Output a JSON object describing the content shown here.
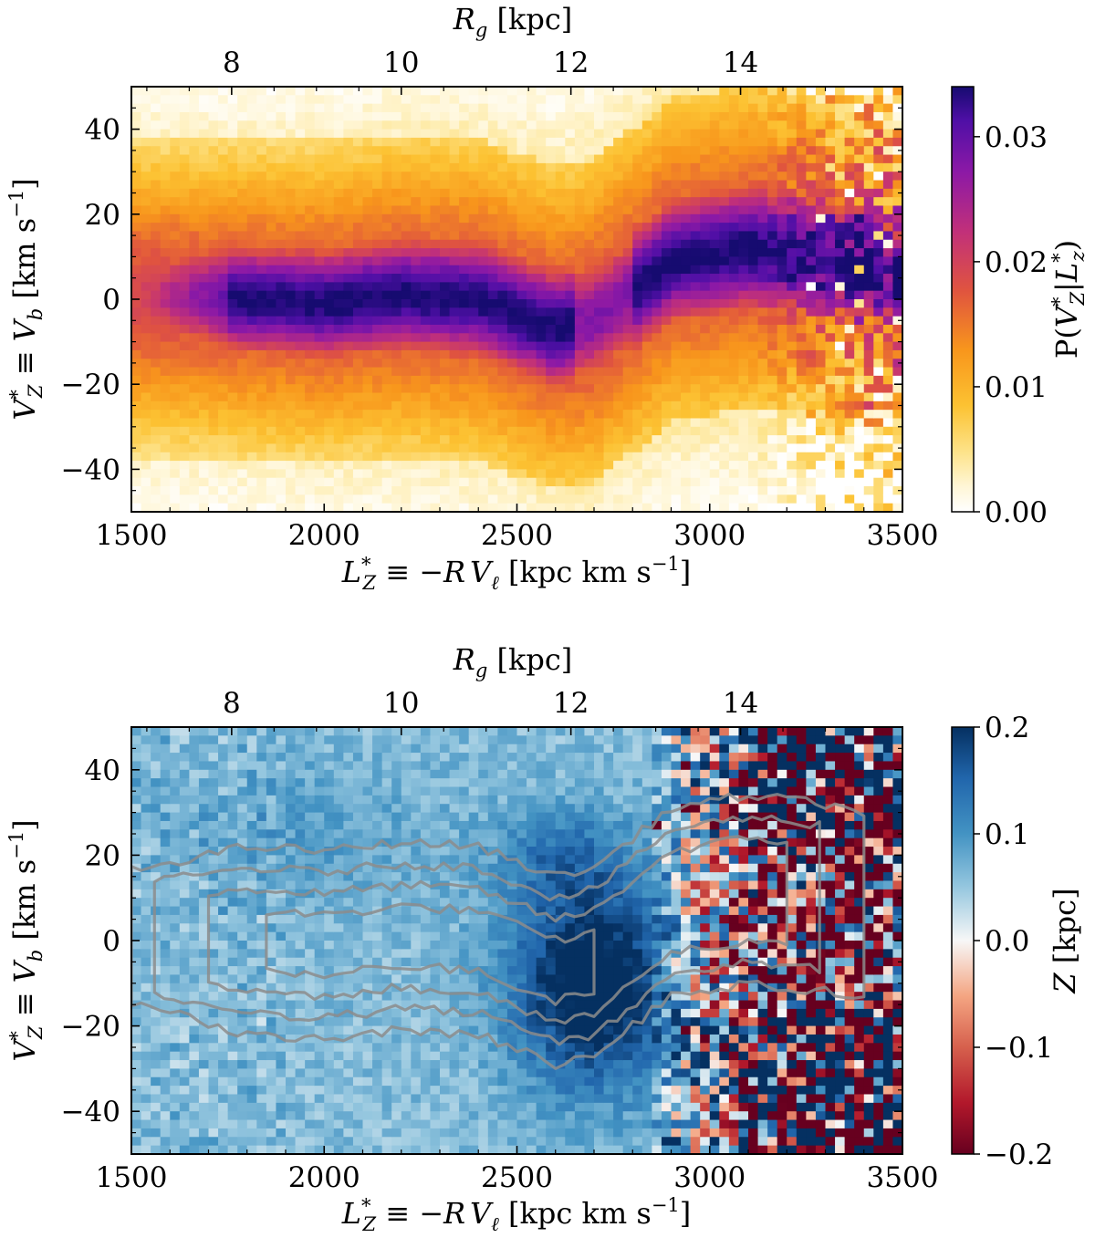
{
  "chart_data": [
    {
      "type": "heatmap",
      "panel": "top",
      "title": "",
      "xlabel": "L*_Z ≡ −RV_ℓ [kpc km s⁻¹]",
      "ylabel": "V*_Z ≡ V_b [km s⁻¹]",
      "top_xlabel": "R_g [kpc]",
      "xlim": [
        1500,
        3500
      ],
      "ylim": [
        -50,
        50
      ],
      "xticks": [
        1500,
        2000,
        2500,
        3000,
        3500
      ],
      "yticks": [
        -40,
        -20,
        0,
        20,
        40
      ],
      "top_xticks": [
        8,
        10,
        12,
        14
      ],
      "top_xtick_Lz": [
        1760,
        2200,
        2640,
        3080
      ],
      "colormap": "inferno-like (white → yellow → orange → purple → navy)",
      "colorbar_label": "P(V*_Z|L*_z)",
      "colorbar_range": [
        0.0,
        0.034
      ],
      "colorbar_ticks": [
        "0.00",
        "0.01",
        "0.02",
        "0.03"
      ],
      "colorbar_tick_values": [
        0.0,
        0.01,
        0.02,
        0.03
      ],
      "ridge_Lz": [
        1500,
        1800,
        2000,
        2200,
        2400,
        2600,
        2700,
        2900,
        3100,
        3300,
        3500
      ],
      "ridge_Vz": [
        1,
        0,
        -1,
        1,
        0,
        -7,
        -5,
        9,
        12,
        10,
        6
      ],
      "ridge_description": "Probability ridge near Vz≈0 for Lz 1800–2600, dipping to ≈−8 near Lz≈2650, then rising to ≈+10 for Lz>2800"
    },
    {
      "type": "heatmap",
      "panel": "bottom",
      "title": "",
      "xlabel": "L*_Z ≡ −RV_ℓ [kpc km s⁻¹]",
      "ylabel": "V*_Z ≡ V_b [km s⁻¹]",
      "top_xlabel": "R_g [kpc]",
      "xlim": [
        1500,
        3500
      ],
      "ylim": [
        -50,
        50
      ],
      "xticks": [
        1500,
        2000,
        2500,
        3000,
        3500
      ],
      "yticks": [
        -40,
        -20,
        0,
        20,
        40
      ],
      "top_xticks": [
        8,
        10,
        12,
        14
      ],
      "top_xtick_Lz": [
        1760,
        2200,
        2640,
        3080
      ],
      "colormap": "RdBu (red → white → blue)",
      "colorbar_label": "Z [kpc]",
      "colorbar_range": [
        -0.2,
        0.2
      ],
      "colorbar_ticks": [
        "−0.2",
        "−0.1",
        "0.0",
        "0.1",
        "0.2"
      ],
      "colorbar_tick_values": [
        -0.2,
        -0.1,
        0.0,
        0.1,
        0.2
      ],
      "blue_blob_center": {
        "Lz": 2700,
        "Vz": -10,
        "Z": 0.2
      },
      "red_region": {
        "Lz_min": 3000,
        "Vz_range": [
          -10,
          20
        ],
        "Z": -0.15
      },
      "contours": "grey density contours of the top-panel distribution"
    }
  ],
  "top": {
    "xlabel": {
      "prefix": "L",
      "sup": "*",
      "sub": "Z",
      "rest": " ≡ −",
      "R": "R",
      "V": "V",
      "vsub": "ℓ",
      "units": " [kpc km s",
      "exp": "−1",
      "close": "]"
    },
    "ylabel": {
      "V": "V",
      "sup": "*",
      "sub": "Z",
      "eq": " ≡ ",
      "V2": "V",
      "sub2": "b",
      "units": " [km s",
      "exp": "−1",
      "close": "]"
    },
    "toplabel": {
      "R": "R",
      "sub": "g",
      "units": " [kpc]"
    },
    "cbar_label": {
      "P": "P(",
      "V": "V",
      "sup": "*",
      "sub": "Z",
      "bar": "|",
      "L": "L",
      "sup2": "*",
      "sub2": "z",
      "close": ")"
    }
  },
  "bottom": {
    "xlabel": {
      "prefix": "L",
      "sup": "*",
      "sub": "Z",
      "rest": " ≡ −",
      "R": "R",
      "V": "V",
      "vsub": "ℓ",
      "units": " [kpc km s",
      "exp": "−1",
      "close": "]"
    },
    "ylabel": {
      "V": "V",
      "sup": "*",
      "sub": "Z",
      "eq": " ≡ ",
      "V2": "V",
      "sub2": "b",
      "units": " [km s",
      "exp": "−1",
      "close": "]"
    },
    "toplabel": {
      "R": "R",
      "sub": "g",
      "units": " [kpc]"
    },
    "cbar_label": {
      "Z": "Z",
      "units": " [kpc]"
    }
  },
  "colors": {
    "axis": "#000000",
    "contour": "#8c8c8c",
    "background": "#ffffff"
  }
}
